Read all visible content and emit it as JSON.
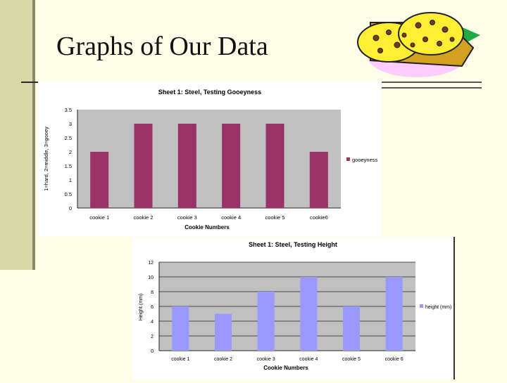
{
  "slide": {
    "title": "Graphs of Our Data"
  },
  "decor": {
    "cookie_icon": "cookie-clipart-icon"
  },
  "colors": {
    "background": "#fdfde8",
    "plot_area": "#c0c0c0",
    "gooeyness_bars": "#993366",
    "height_bars": "#9999ff"
  },
  "chart_data": [
    {
      "type": "bar",
      "title": "Sheet 1: Steel, Testing Gooeyness",
      "xlabel": "Cookie Numbers",
      "ylabel": "1=hard, 2=middle, 3=gooey",
      "categories": [
        "cookie 1",
        "cookie 2",
        "cookie 3",
        "cookie 4",
        "cookie 5",
        "cookie6"
      ],
      "series": [
        {
          "name": "gooeyness",
          "values": [
            2,
            3,
            3,
            3,
            3,
            2
          ]
        }
      ],
      "yticks": [
        "0",
        "0.5",
        "1",
        "1.5",
        "2",
        "2.5",
        "3",
        "3.5"
      ],
      "ylim": [
        0,
        3.5
      ],
      "grid": false,
      "legend": "right"
    },
    {
      "type": "bar",
      "title": "Sheet 1: Steel, Testing Height",
      "xlabel": "Cookie Numbers",
      "ylabel": "Height (mm)",
      "categories": [
        "cookie 1",
        "cookie 2",
        "cookie 3",
        "cookie 4",
        "cookie 5",
        "cookie 6"
      ],
      "series": [
        {
          "name": "height (mm)",
          "values": [
            6,
            5,
            8,
            10,
            6,
            10
          ]
        }
      ],
      "yticks": [
        "0",
        "2",
        "4",
        "6",
        "8",
        "10",
        "12"
      ],
      "ylim": [
        0,
        12
      ],
      "grid": true,
      "legend": "right"
    }
  ]
}
